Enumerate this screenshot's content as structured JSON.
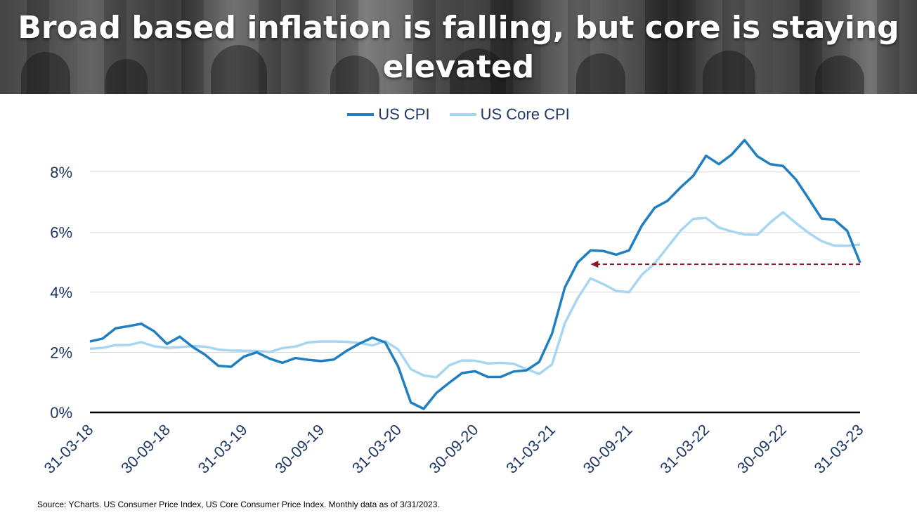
{
  "title": "Broad based inflation is falling, but core is staying elevated",
  "source": "Source: YCharts. US Consumer Price Index, US Core Consumer Price Index. Monthly data as of 3/31/2023.",
  "colors": {
    "cpi": "#1f7fc0",
    "core": "#a7d6f2",
    "arrow": "#8b1a2b",
    "axis_text": "#1f3864",
    "grid": "#d9d9d9"
  },
  "chart_data": {
    "type": "line",
    "legend_position": "top",
    "grid": true,
    "ylim": [
      0,
      9
    ],
    "yticks": [
      0,
      2,
      4,
      6,
      8
    ],
    "ytick_labels": [
      "0%",
      "2%",
      "4%",
      "6%",
      "8%"
    ],
    "x_tick_labels": [
      "31-03-18",
      "30-09-18",
      "31-03-19",
      "30-09-19",
      "31-03-20",
      "30-09-20",
      "31-03-21",
      "30-09-21",
      "31-03-22",
      "30-09-22",
      "31-03-23"
    ],
    "x_start": "2018-03",
    "x_end": "2023-03",
    "series": [
      {
        "name": "US CPI",
        "values": [
          2.36,
          2.46,
          2.8,
          2.87,
          2.95,
          2.7,
          2.28,
          2.52,
          2.18,
          1.91,
          1.55,
          1.52,
          1.86,
          2.0,
          1.79,
          1.65,
          1.81,
          1.75,
          1.71,
          1.76,
          2.05,
          2.29,
          2.49,
          2.33,
          1.54,
          0.33,
          0.12,
          0.65,
          0.99,
          1.31,
          1.37,
          1.18,
          1.18,
          1.36,
          1.4,
          1.68,
          2.62,
          4.16,
          4.99,
          5.39,
          5.37,
          5.25,
          5.39,
          6.22,
          6.81,
          7.04,
          7.48,
          7.87,
          8.54,
          8.26,
          8.58,
          9.06,
          8.52,
          8.26,
          8.2,
          7.75,
          7.11,
          6.45,
          6.41,
          6.04,
          4.98
        ]
      },
      {
        "name": "US Core CPI",
        "values": [
          2.12,
          2.15,
          2.24,
          2.24,
          2.34,
          2.2,
          2.15,
          2.17,
          2.21,
          2.19,
          2.09,
          2.06,
          2.05,
          2.05,
          2.01,
          2.14,
          2.19,
          2.33,
          2.36,
          2.36,
          2.35,
          2.31,
          2.23,
          2.37,
          2.1,
          1.44,
          1.23,
          1.17,
          1.57,
          1.73,
          1.72,
          1.63,
          1.65,
          1.62,
          1.44,
          1.28,
          1.6,
          2.97,
          3.8,
          4.46,
          4.27,
          4.04,
          4.0,
          4.58,
          4.96,
          5.5,
          6.04,
          6.44,
          6.47,
          6.15,
          6.02,
          5.92,
          5.91,
          6.32,
          6.66,
          6.3,
          5.97,
          5.7,
          5.55,
          5.54,
          5.59
        ]
      }
    ],
    "annotation": {
      "type": "dashed-arrow",
      "direction": "left",
      "from": "2023-03",
      "to": "2021-06",
      "y": 4.93
    }
  }
}
